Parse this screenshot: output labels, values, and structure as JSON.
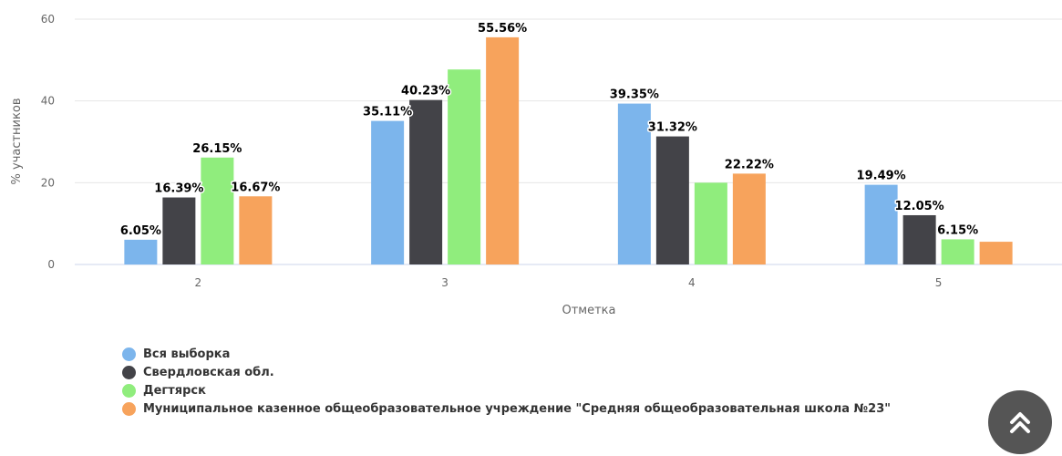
{
  "chart_data": {
    "type": "bar",
    "xlabel": "Отметка",
    "ylabel": "% участников",
    "ylim": [
      0,
      60
    ],
    "yticks": [
      0,
      20,
      40,
      60
    ],
    "grid": true,
    "legend_position": "bottom-left",
    "categories": [
      "2",
      "3",
      "4",
      "5"
    ],
    "series": [
      {
        "name": "Вся выборка",
        "color": "#7cb5ec",
        "values": [
          6.05,
          35.11,
          39.35,
          19.49
        ],
        "labels": [
          "6.05%",
          "35.11%",
          "39.35%",
          "19.49%"
        ]
      },
      {
        "name": "Свердловская обл.",
        "color": "#434348",
        "values": [
          16.39,
          40.23,
          31.32,
          12.05
        ],
        "labels": [
          "16.39%",
          "40.23%",
          "31.32%",
          "12.05%"
        ]
      },
      {
        "name": "Дегтярск",
        "color": "#90ed7d",
        "values": [
          26.15,
          47.69,
          20.0,
          6.15
        ],
        "labels": [
          "26.15%",
          "",
          "",
          "6.15%"
        ]
      },
      {
        "name": "Муниципальное казенное общеобразовательное учреждение \"Средняя общеобразовательная школа №23\"",
        "color": "#f7a35c",
        "values": [
          16.67,
          55.56,
          22.22,
          5.56
        ],
        "labels": [
          "16.67%",
          "55.56%",
          "22.22%",
          ""
        ]
      }
    ]
  },
  "scroll_top_button": {
    "icon": "double-chevron-up-icon"
  }
}
